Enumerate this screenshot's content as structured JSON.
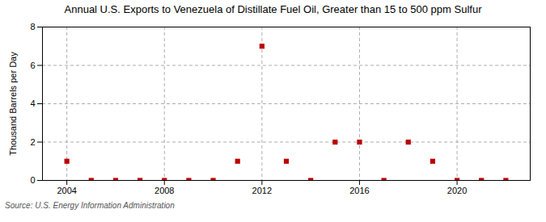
{
  "chart_data": {
    "type": "scatter",
    "title": "Annual U.S. Exports to Venezuela of Distillate Fuel Oil, Greater than 15 to 500 ppm Sulfur",
    "ylabel": "Thousand Barrels per Day",
    "annotations": [
      "Source: U.S. Energy Information Administration"
    ],
    "x": [
      2004,
      2005,
      2006,
      2007,
      2008,
      2009,
      2010,
      2011,
      2012,
      2013,
      2014,
      2015,
      2016,
      2017,
      2018,
      2019,
      2020,
      2021,
      2022
    ],
    "values": [
      1,
      0,
      0,
      0,
      0,
      0,
      0,
      1,
      7,
      1,
      0,
      2,
      2,
      0,
      2,
      1,
      0,
      0,
      0
    ],
    "color": "#bb0000",
    "marker": "square",
    "xlim": [
      2003,
      2023
    ],
    "xticks": [
      2004,
      2008,
      2012,
      2016,
      2020
    ],
    "ylim": [
      0,
      8
    ],
    "yticks": [
      0,
      2,
      4,
      6,
      8
    ],
    "grid": true
  }
}
